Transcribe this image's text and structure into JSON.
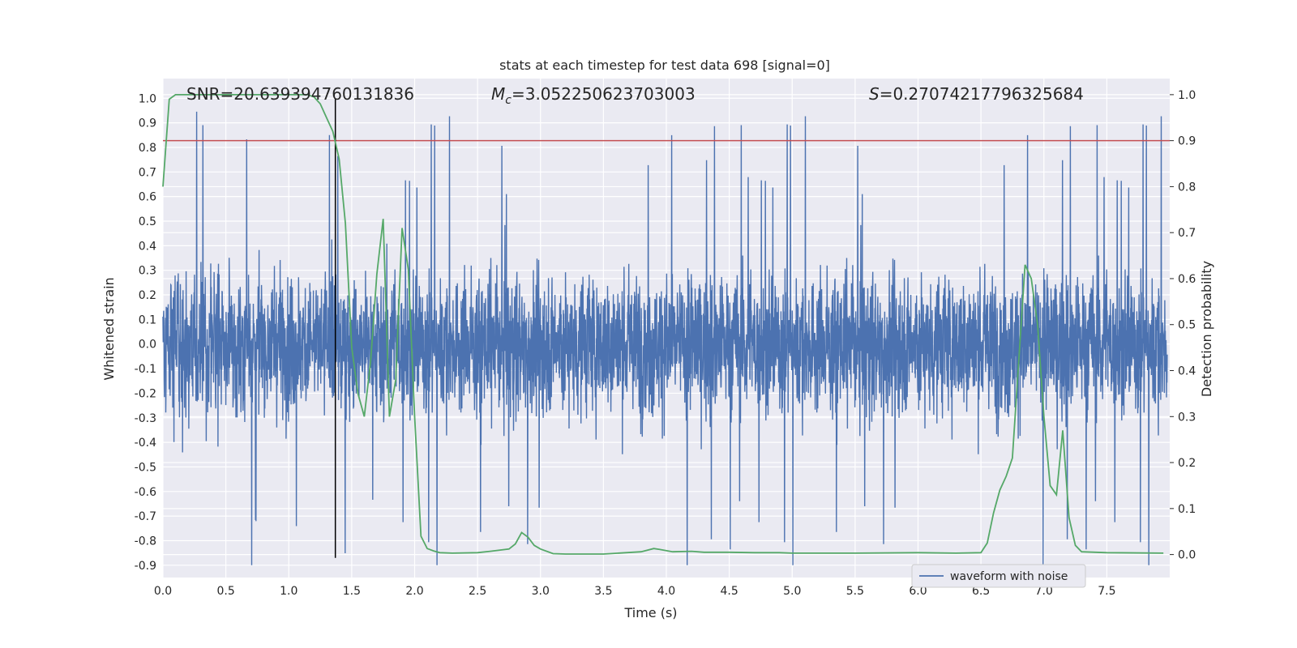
{
  "chart_data": {
    "type": "line",
    "title": "stats at each timestep for test data 698 [signal=0]",
    "xlabel": "Time (s)",
    "ylabel": "Whitened strain",
    "ylabel_right": "Detection probability",
    "xlim": [
      0.0,
      8.0
    ],
    "ylim": [
      -0.95,
      1.08
    ],
    "ylim_right": [
      -0.05,
      1.035
    ],
    "x_ticks": [
      "0.0",
      "0.5",
      "1.0",
      "1.5",
      "2.0",
      "2.5",
      "3.0",
      "3.5",
      "4.0",
      "4.5",
      "5.0",
      "5.5",
      "6.0",
      "6.5",
      "7.0",
      "7.5"
    ],
    "y_ticks": [
      "1.0",
      "0.9",
      "0.8",
      "0.7",
      "0.6",
      "0.5",
      "0.4",
      "0.3",
      "0.2",
      "0.1",
      "0.0",
      "-0.1",
      "-0.2",
      "-0.3",
      "-0.4",
      "-0.5",
      "-0.6",
      "-0.7",
      "-0.8",
      "-0.9"
    ],
    "y_ticks_right": [
      "1.0",
      "0.9",
      "0.8",
      "0.7",
      "0.6",
      "0.5",
      "0.4",
      "0.3",
      "0.2",
      "0.1",
      "0.0"
    ],
    "grid": true,
    "annotations": {
      "snr": "SNR=20.639394760131836",
      "mc_symbol": "M",
      "mc_sub": "c",
      "mc_value": "=3.052250623703003",
      "s_symbol": "S",
      "s_value": "=0.27074217796325684"
    },
    "threshold_right": 0.9,
    "vertical_marker_x": 1.37,
    "legend": {
      "placement": "lower-right",
      "entries": [
        "waveform with noise"
      ]
    },
    "colors": {
      "waveform": "#4c72b0",
      "probability": "#55a868",
      "threshold": "#c44e52",
      "marker": "#000000",
      "background": "#eaeaf2"
    },
    "series": [
      {
        "name": "waveform with noise",
        "axis": "left",
        "representation": "dense noise trace, typical amplitude ±0.4, peaks up to ±1.0"
      },
      {
        "axis": "right",
        "x": [
          0.0,
          0.05,
          0.1,
          0.15,
          0.2,
          0.3,
          0.5,
          0.7,
          0.9,
          1.0,
          1.1,
          1.15,
          1.2,
          1.25,
          1.3,
          1.35,
          1.4,
          1.45,
          1.5,
          1.55,
          1.6,
          1.65,
          1.7,
          1.75,
          1.8,
          1.85,
          1.9,
          1.95,
          2.0,
          2.05,
          2.1,
          2.15,
          2.2,
          2.3,
          2.5,
          2.6,
          2.75,
          2.8,
          2.85,
          2.9,
          2.95,
          3.0,
          3.1,
          3.2,
          3.5,
          3.8,
          3.9,
          3.95,
          4.05,
          4.2,
          4.3,
          4.5,
          4.7,
          4.9,
          5.0,
          5.5,
          6.0,
          6.3,
          6.5,
          6.55,
          6.6,
          6.65,
          6.7,
          6.75,
          6.8,
          6.85,
          6.9,
          6.95,
          7.0,
          7.05,
          7.1,
          7.15,
          7.2,
          7.25,
          7.3,
          7.5,
          7.95
        ],
        "values": [
          0.8,
          0.99,
          1.0,
          1.0,
          1.0,
          1.0,
          1.0,
          1.0,
          1.0,
          1.0,
          1.0,
          1.0,
          0.995,
          0.98,
          0.95,
          0.92,
          0.86,
          0.72,
          0.45,
          0.35,
          0.3,
          0.42,
          0.61,
          0.73,
          0.3,
          0.38,
          0.71,
          0.62,
          0.3,
          0.04,
          0.013,
          0.008,
          0.004,
          0.003,
          0.004,
          0.007,
          0.012,
          0.023,
          0.048,
          0.038,
          0.02,
          0.012,
          0.002,
          0.001,
          0.001,
          0.006,
          0.013,
          0.011,
          0.006,
          0.007,
          0.005,
          0.005,
          0.004,
          0.004,
          0.003,
          0.003,
          0.004,
          0.003,
          0.004,
          0.025,
          0.09,
          0.14,
          0.17,
          0.21,
          0.42,
          0.63,
          0.6,
          0.5,
          0.3,
          0.15,
          0.13,
          0.27,
          0.08,
          0.02,
          0.006,
          0.004,
          0.003
        ]
      }
    ]
  }
}
